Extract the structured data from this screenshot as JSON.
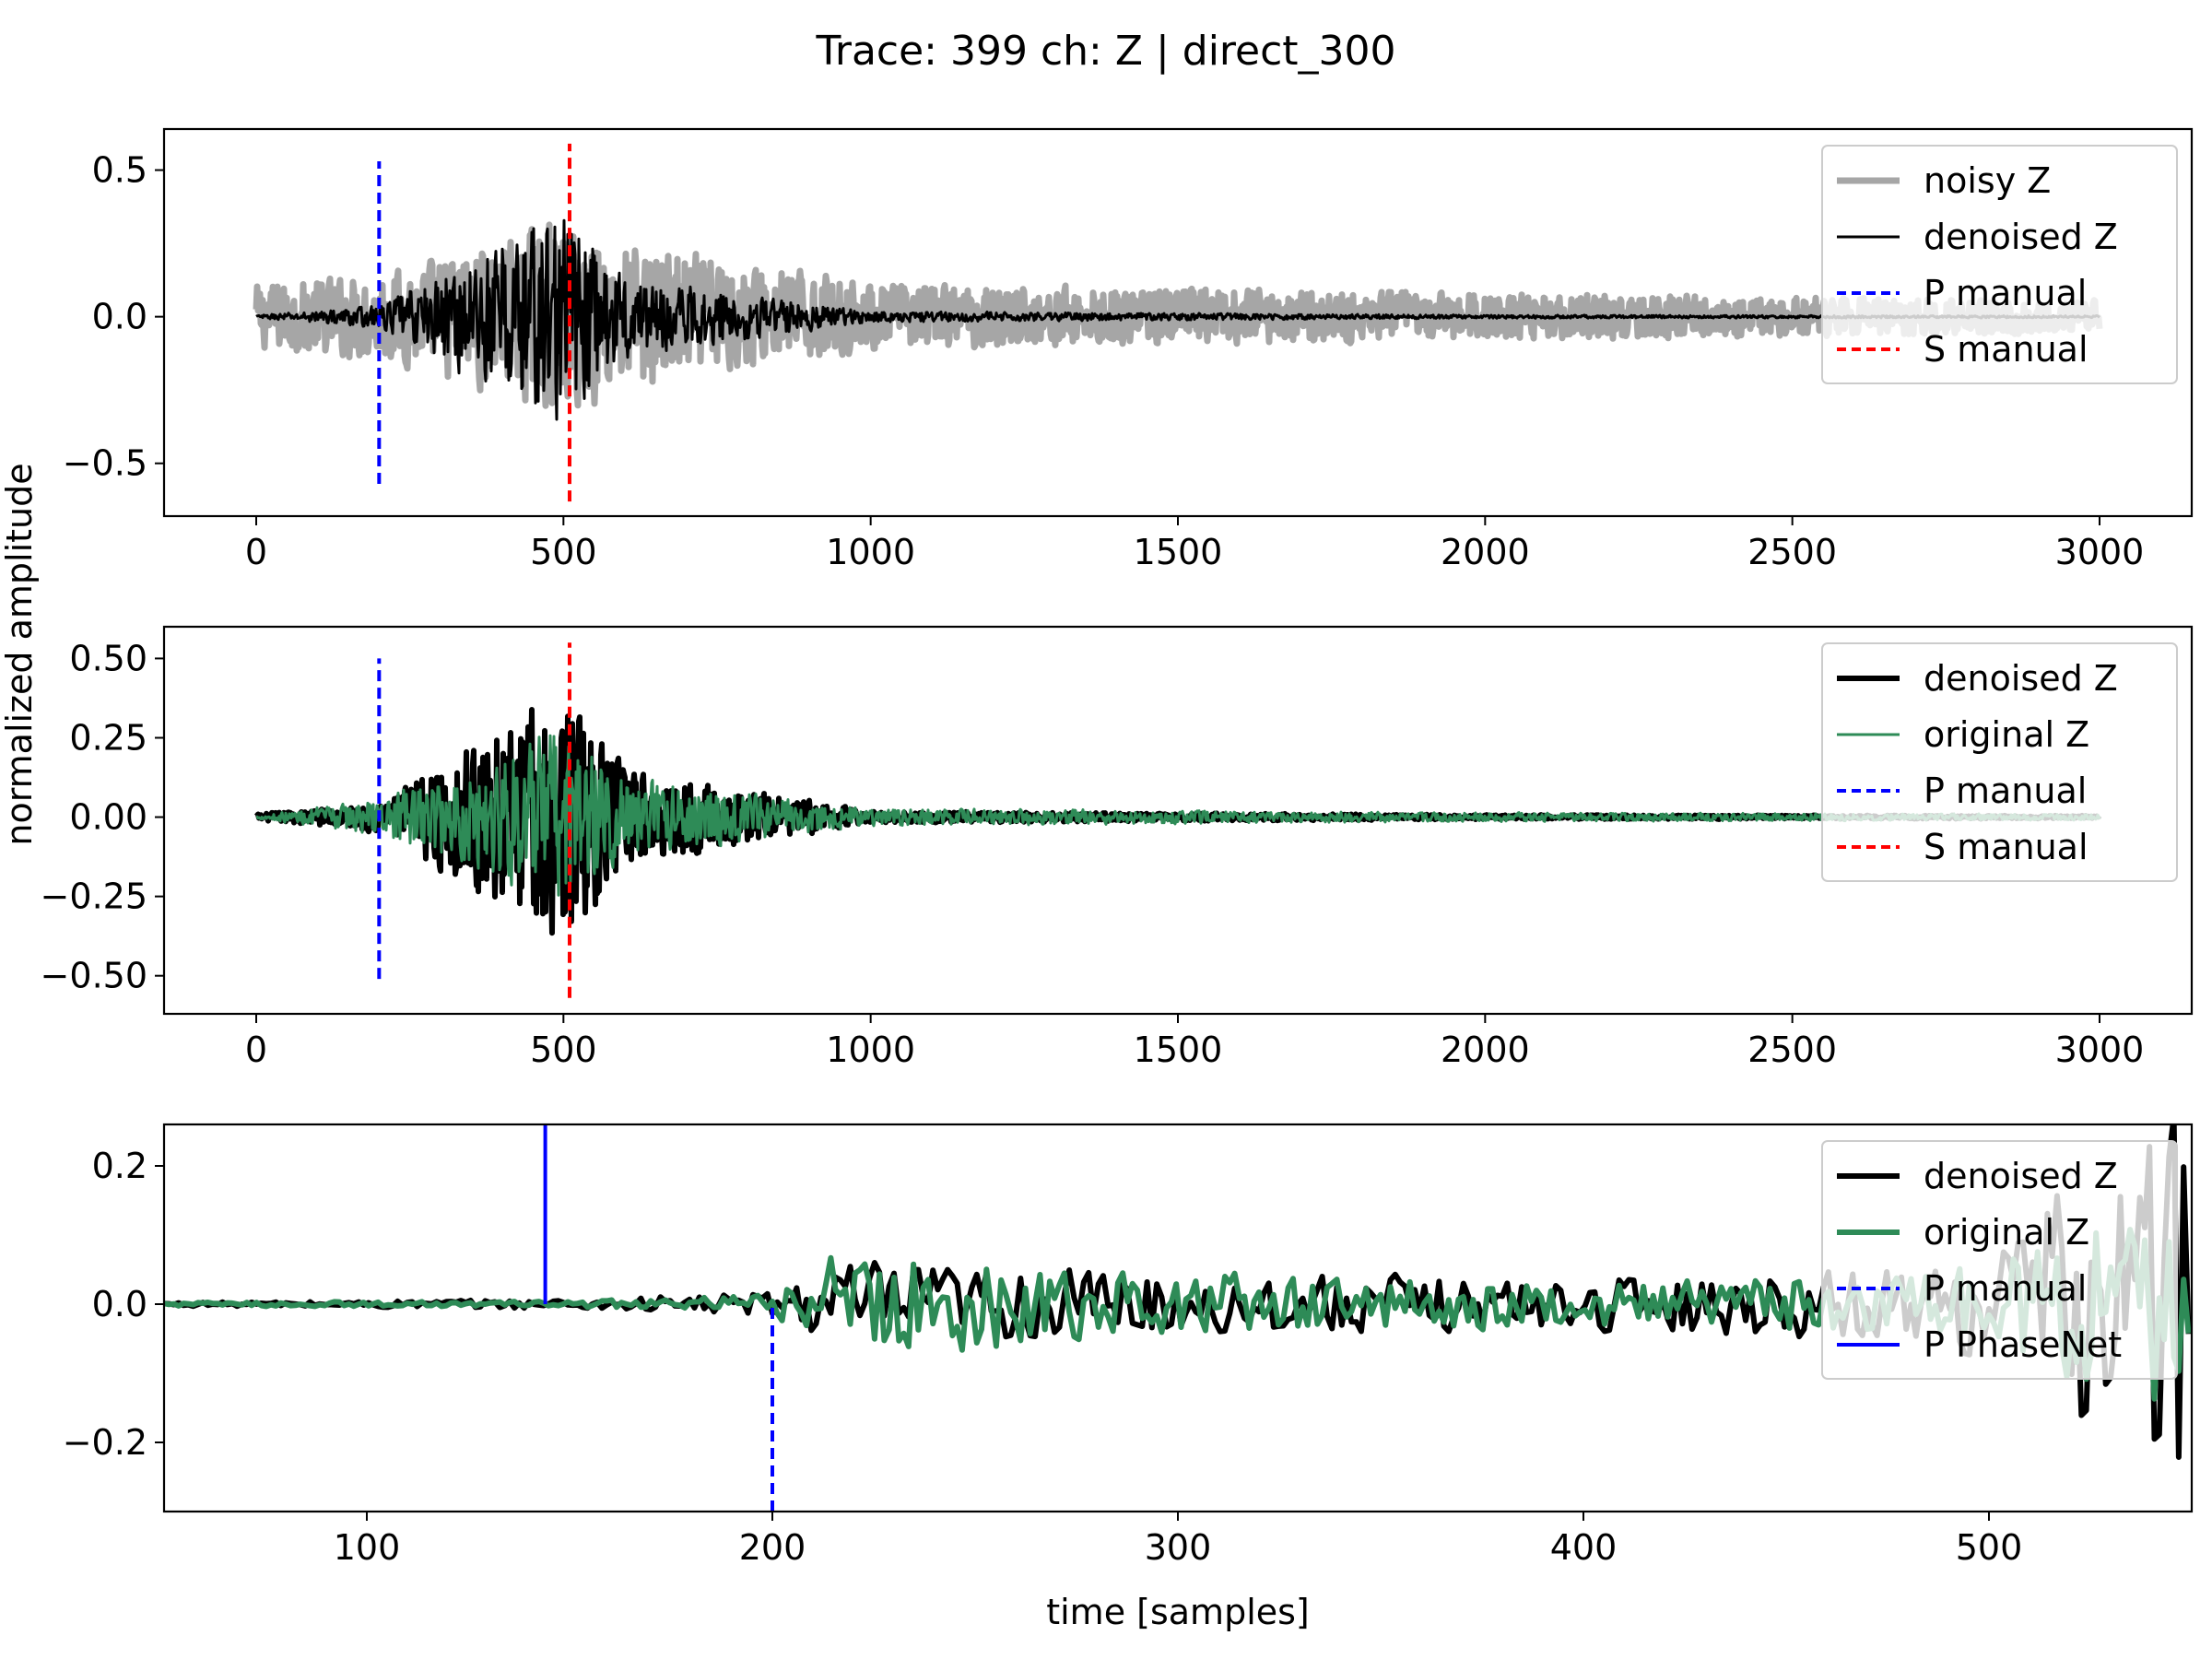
{
  "figure": {
    "title": "Trace: 399 ch: Z | direct_300",
    "ylabel": "normalized amplitude",
    "xlabel": "time [samples]"
  },
  "colors": {
    "noisy": "#a6a6a6",
    "denoised": "#000000",
    "original": "#2e8b57",
    "p_manual": "#0000ff",
    "s_manual": "#ff0000",
    "p_phasenet": "#0000ff"
  },
  "chart_data": [
    {
      "type": "line",
      "xlim": [
        -150,
        3150
      ],
      "ylim": [
        -0.68,
        0.64
      ],
      "xticks": [
        0,
        500,
        1000,
        1500,
        2000,
        2500,
        3000
      ],
      "xticklabels": [
        "0",
        "500",
        "1000",
        "1500",
        "2000",
        "2500",
        "3000"
      ],
      "yticks": [
        0.5,
        0.0,
        -0.5
      ],
      "yticklabels": [
        "0.5",
        "0.0",
        "−0.5"
      ],
      "legend_position": "top-right",
      "legend": [
        "noisy Z",
        "denoised Z",
        "P manual",
        "S manual"
      ],
      "series": [
        {
          "name": "noisy Z",
          "role": "noisy",
          "envelope": {
            "x": [
              0,
              200,
              500,
              600,
              1000,
              2000,
              3000
            ],
            "amp": [
              0.12,
              0.16,
              0.35,
              0.28,
              0.12,
              0.09,
              0.06
            ]
          }
        },
        {
          "name": "denoised Z",
          "role": "denoised",
          "envelope": {
            "x": [
              0,
              200,
              500,
              600,
              1000,
              2000,
              3000
            ],
            "amp": [
              0.005,
              0.04,
              0.42,
              0.15,
              0.02,
              0.006,
              0.004
            ]
          }
        }
      ],
      "vlines": [
        {
          "name": "P manual",
          "x": 200,
          "y": [
            -0.57,
            0.53
          ],
          "style": "dashed",
          "color_key": "p_manual"
        },
        {
          "name": "S manual",
          "x": 510,
          "y": [
            -0.63,
            0.59
          ],
          "style": "dashed",
          "color_key": "s_manual"
        }
      ]
    },
    {
      "type": "line",
      "xlim": [
        -150,
        3150
      ],
      "ylim": [
        -0.62,
        0.6
      ],
      "xticks": [
        0,
        500,
        1000,
        1500,
        2000,
        2500,
        3000
      ],
      "xticklabels": [
        "0",
        "500",
        "1000",
        "1500",
        "2000",
        "2500",
        "3000"
      ],
      "yticks": [
        0.5,
        0.25,
        0.0,
        -0.25,
        -0.5
      ],
      "yticklabels": [
        "0.50",
        "0.25",
        "0.00",
        "−0.25",
        "−0.50"
      ],
      "legend_position": "top-right",
      "legend": [
        "denoised Z",
        "original Z",
        "P manual",
        "S manual"
      ],
      "series": [
        {
          "name": "denoised Z",
          "role": "denoised",
          "envelope": {
            "x": [
              0,
              200,
              500,
              600,
              1000,
              2000,
              3000
            ],
            "amp": [
              0.01,
              0.05,
              0.45,
              0.16,
              0.02,
              0.008,
              0.005
            ]
          }
        },
        {
          "name": "original Z",
          "role": "original",
          "envelope": {
            "x": [
              0,
              200,
              500,
              600,
              1000,
              2000,
              3000
            ],
            "amp": [
              0.005,
              0.06,
              0.3,
              0.13,
              0.03,
              0.015,
              0.01
            ]
          }
        }
      ],
      "vlines": [
        {
          "name": "P manual",
          "x": 200,
          "y": [
            -0.51,
            0.5
          ],
          "style": "dashed",
          "color_key": "p_manual"
        },
        {
          "name": "S manual",
          "x": 510,
          "y": [
            -0.57,
            0.55
          ],
          "style": "dashed",
          "color_key": "s_manual"
        }
      ]
    },
    {
      "type": "line",
      "xlim": [
        50,
        550
      ],
      "ylim": [
        -0.3,
        0.26
      ],
      "xticks": [
        100,
        200,
        300,
        400,
        500
      ],
      "xticklabels": [
        "100",
        "200",
        "300",
        "400",
        "500"
      ],
      "yticks": [
        0.2,
        0.0,
        -0.2
      ],
      "yticklabels": [
        "0.2",
        "0.0",
        "−0.2"
      ],
      "legend_position": "top-right",
      "legend": [
        "denoised Z",
        "original Z",
        "P manual",
        "P PhaseNet"
      ],
      "series": [
        {
          "name": "denoised Z",
          "role": "denoised",
          "envelope": {
            "x": [
              50,
              150,
              200,
              215,
              300,
              400,
              490,
              550
            ],
            "amp": [
              0.003,
              0.008,
              0.02,
              0.07,
              0.05,
              0.04,
              0.06,
              0.34
            ]
          }
        },
        {
          "name": "original Z",
          "role": "original",
          "envelope": {
            "x": [
              50,
              150,
              200,
              215,
              300,
              400,
              490,
              550
            ],
            "amp": [
              0.003,
              0.005,
              0.015,
              0.09,
              0.05,
              0.035,
              0.05,
              0.2
            ]
          }
        }
      ],
      "vlines": [
        {
          "name": "P manual",
          "x": 200,
          "y": [
            -0.3,
            0.0
          ],
          "style": "dashed",
          "color_key": "p_manual"
        },
        {
          "name": "P PhaseNet",
          "x": 144,
          "y": [
            0.0,
            0.26
          ],
          "style": "solid",
          "color_key": "p_phasenet"
        }
      ]
    }
  ]
}
